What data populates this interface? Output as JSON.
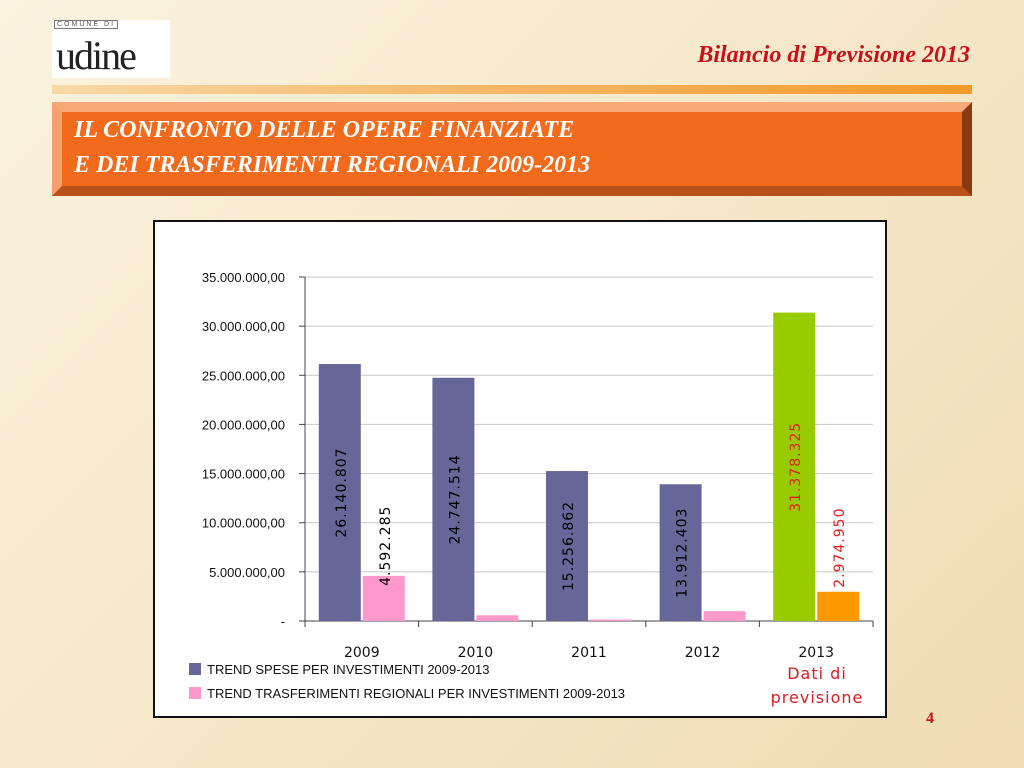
{
  "header": {
    "logo_top": "COMUNE DI",
    "logo_word": "udine",
    "title": "Bilancio di Previsione 2013"
  },
  "banner": {
    "line1": "IL CONFRONTO DELLE OPERE FINANZIATE",
    "line2": "E DEI TRASFERIMENTI REGIONALI 2009-2013"
  },
  "chart_data": {
    "type": "bar",
    "categories": [
      "2009",
      "2010",
      "2011",
      "2012",
      "2013"
    ],
    "series": [
      {
        "name": "TREND SPESE  PER INVESTIMENTI 2009-2013",
        "values": [
          26140807,
          24747514,
          15256862,
          13912403,
          31378325
        ],
        "labels": [
          "26.140.807",
          "24.747.514",
          "15.256.862",
          "13.912.403",
          "31.378.325"
        ],
        "color": "#666699",
        "highlight_color": "#99cc00",
        "label_color": "#000000",
        "highlight_label_color": "#e41b1b"
      },
      {
        "name": "TREND TRASFERIMENTI REGIONALI PER INVESTIMENTI 2009-2013",
        "values": [
          4592285,
          580000,
          150000,
          1000000,
          2974950
        ],
        "labels": [
          "4.592.285",
          "",
          "",
          "",
          "2.974.950"
        ],
        "color": "#ff99cc",
        "highlight_color": "#ff9900",
        "label_color": "#000000",
        "highlight_label_color": "#e41b1b"
      }
    ],
    "highlight_index": 4,
    "ylim": [
      0,
      35000000
    ],
    "yticks": [
      0,
      5000000,
      10000000,
      15000000,
      20000000,
      25000000,
      30000000,
      35000000
    ],
    "ytick_labels": [
      "-",
      "5.000.000,00",
      "10.000.000,00",
      "15.000.000,00",
      "20.000.000,00",
      "25.000.000,00",
      "30.000.000,00",
      "35.000.000,00"
    ],
    "grid": true,
    "legend_position": "bottom-left",
    "xlabel": "",
    "ylabel": ""
  },
  "note": {
    "line1": "Dati di",
    "line2": "previsione"
  },
  "page_number": "4"
}
